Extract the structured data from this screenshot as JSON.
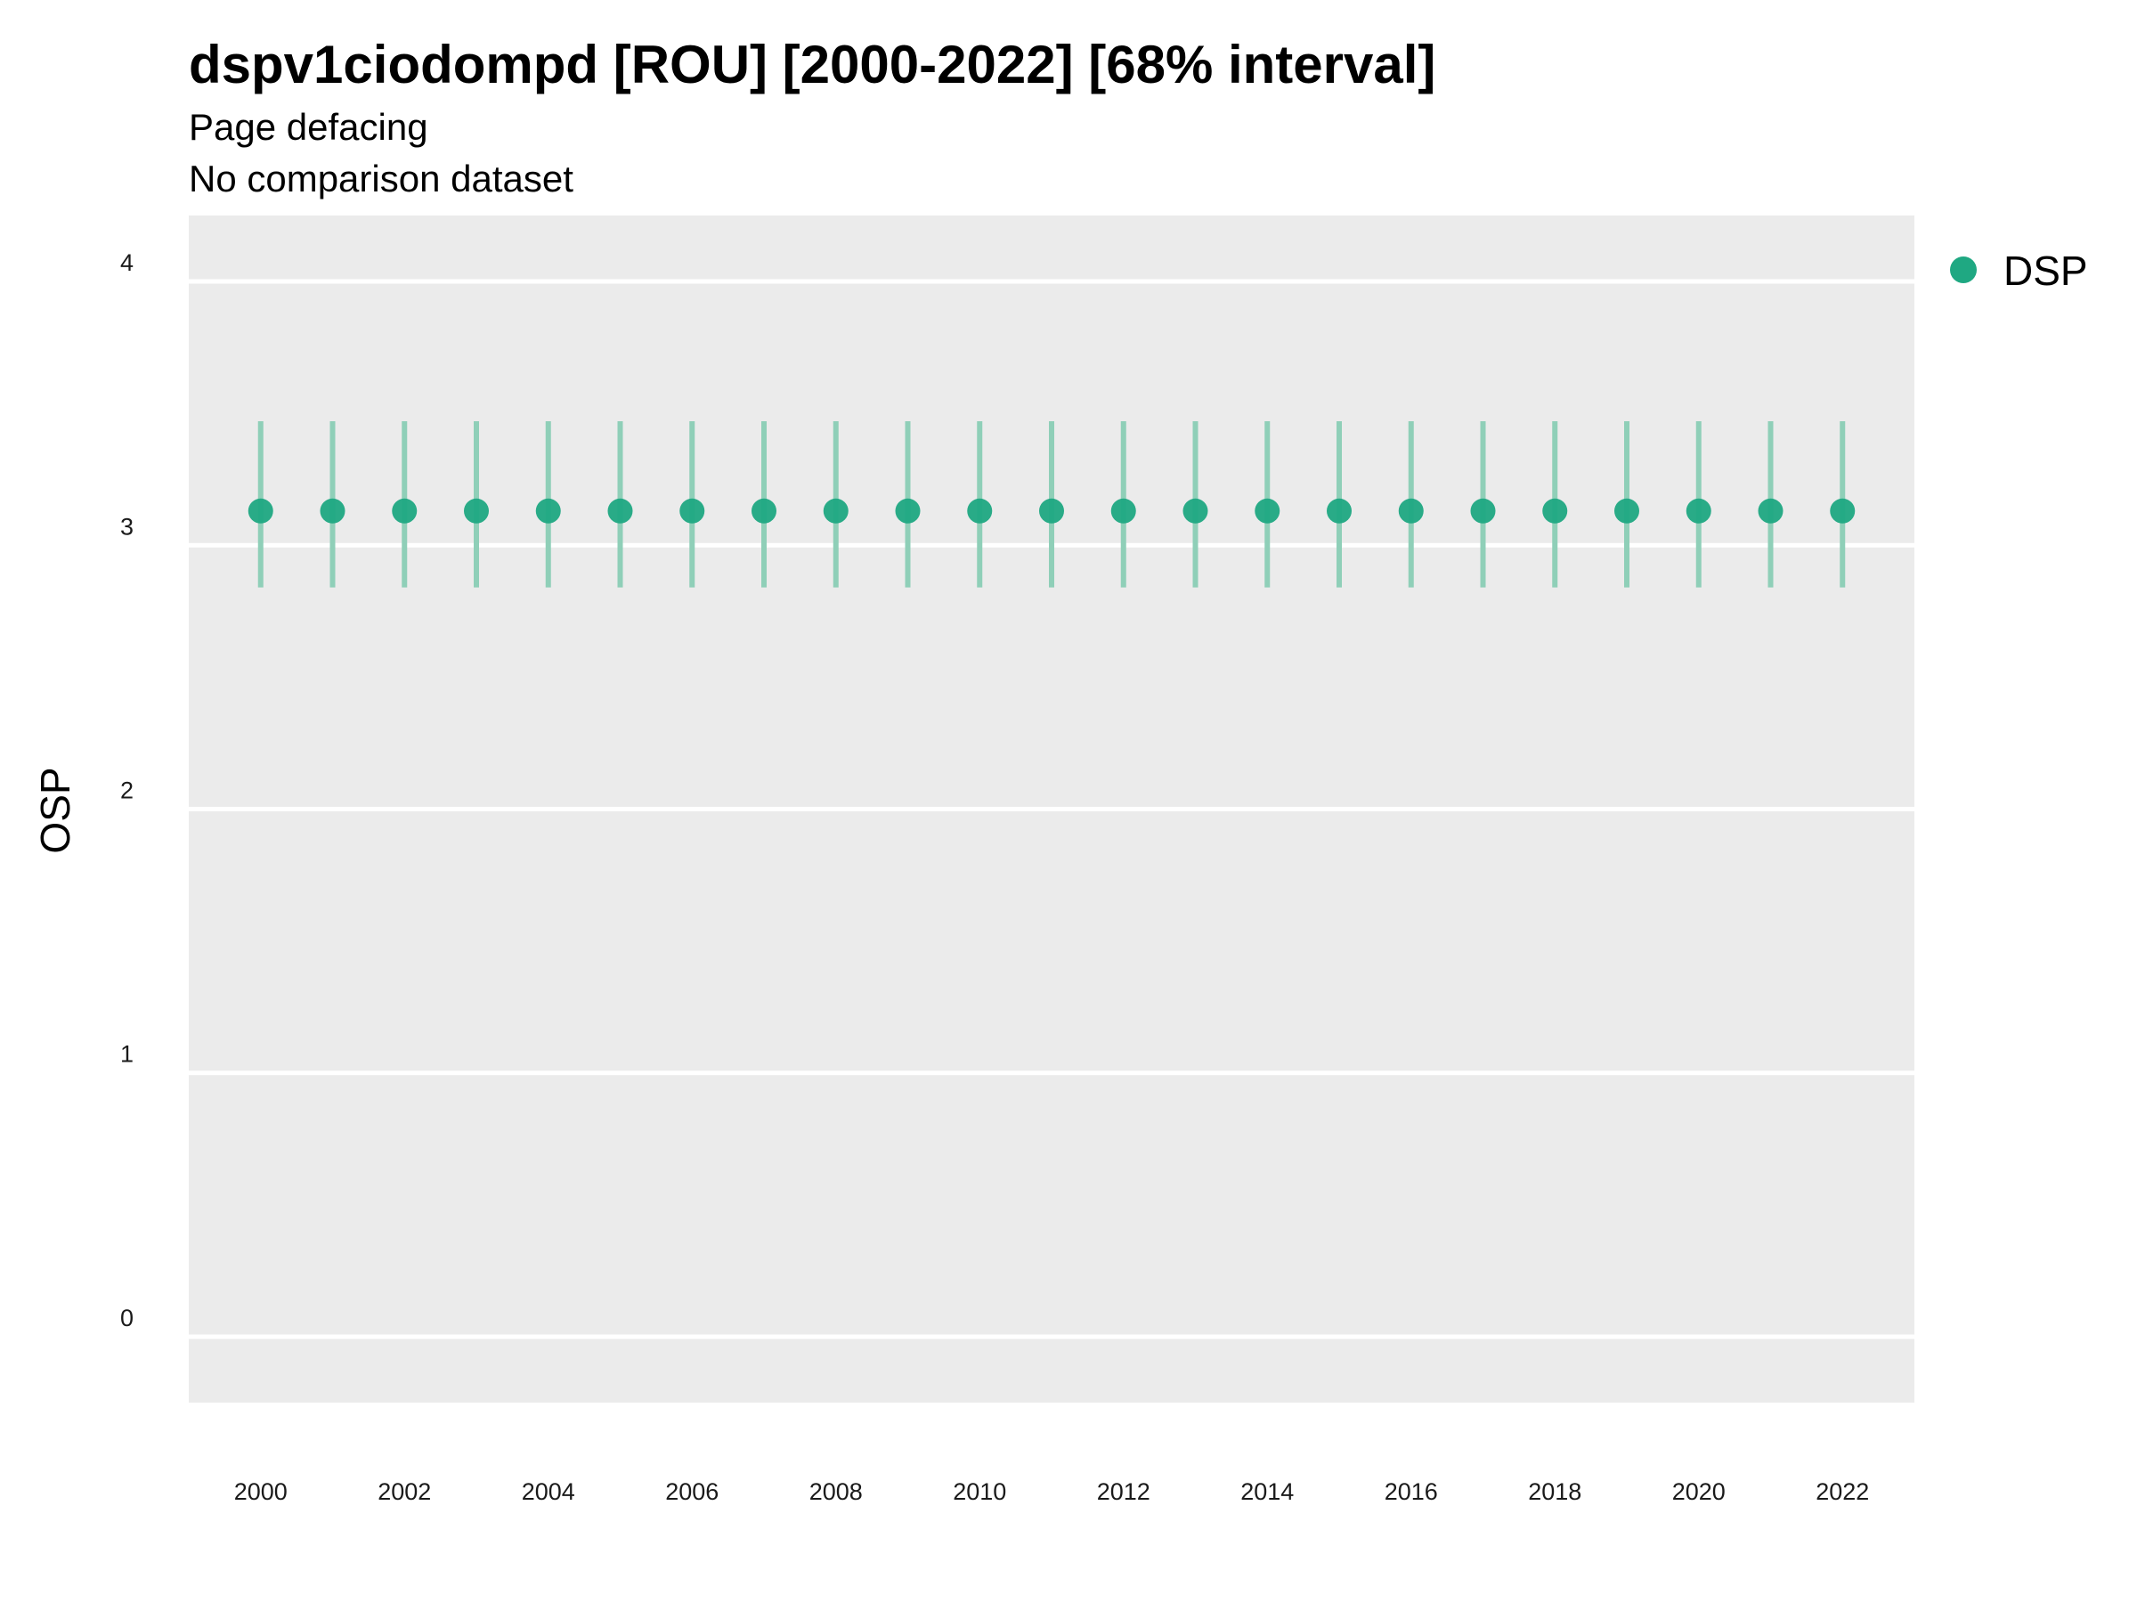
{
  "chart_data": {
    "type": "scatter",
    "title": "dspv1ciodompd [ROU] [2000-2022] [68% interval]",
    "subtitles": [
      "Page defacing",
      "No comparison dataset"
    ],
    "xlabel": "",
    "ylabel": "OSP",
    "ylim": [
      -0.25,
      4.25
    ],
    "xlim": [
      1999,
      2023
    ],
    "y_ticks": [
      0,
      1,
      2,
      3,
      4
    ],
    "x_ticks": [
      2000,
      2002,
      2004,
      2006,
      2008,
      2010,
      2012,
      2014,
      2016,
      2018,
      2020,
      2022
    ],
    "grid": "horizontal major",
    "legend_position": "top-right",
    "series": [
      {
        "name": "DSP",
        "color": "#1fa882",
        "x": [
          2000,
          2001,
          2002,
          2003,
          2004,
          2005,
          2006,
          2007,
          2008,
          2009,
          2010,
          2011,
          2012,
          2013,
          2014,
          2015,
          2016,
          2017,
          2018,
          2019,
          2020,
          2021,
          2022
        ],
        "y": [
          3.13,
          3.13,
          3.13,
          3.13,
          3.13,
          3.13,
          3.13,
          3.13,
          3.13,
          3.13,
          3.13,
          3.13,
          3.13,
          3.13,
          3.13,
          3.13,
          3.13,
          3.13,
          3.13,
          3.13,
          3.13,
          3.13,
          3.13
        ],
        "lower": [
          2.84,
          2.84,
          2.84,
          2.84,
          2.84,
          2.84,
          2.84,
          2.84,
          2.84,
          2.84,
          2.84,
          2.84,
          2.84,
          2.84,
          2.84,
          2.84,
          2.84,
          2.84,
          2.84,
          2.84,
          2.84,
          2.84,
          2.84
        ],
        "upper": [
          3.47,
          3.47,
          3.47,
          3.47,
          3.47,
          3.47,
          3.47,
          3.47,
          3.47,
          3.47,
          3.47,
          3.47,
          3.47,
          3.47,
          3.47,
          3.47,
          3.47,
          3.47,
          3.47,
          3.47,
          3.47,
          3.47,
          3.47
        ]
      }
    ]
  },
  "colors": {
    "panel_background": "#ebebeb",
    "gridline": "#ffffff",
    "point": "#1fa882",
    "errorbar": "#8fcfb8"
  }
}
